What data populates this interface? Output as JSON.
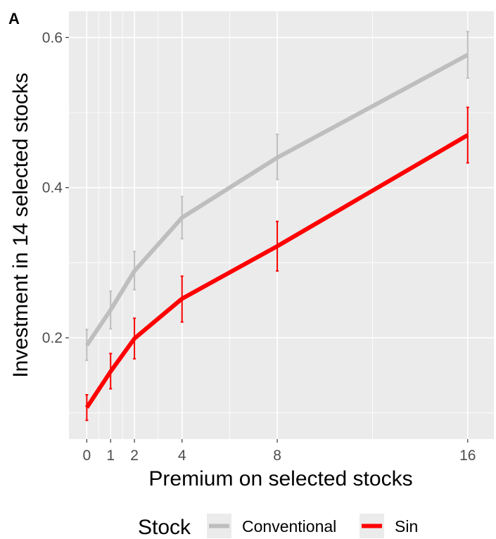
{
  "panel_label": "A",
  "chart_data": {
    "type": "line",
    "xlabel": "Premium on selected stocks",
    "ylabel": "Investment in 14 selected stocks",
    "x": [
      0,
      1,
      2,
      4,
      8,
      16
    ],
    "x_ticks": [
      "0",
      "1",
      "2",
      "4",
      "8",
      "16"
    ],
    "xlim": [
      -0.75,
      17.1
    ],
    "y_ticks": [
      "0.2",
      "0.4",
      "0.6"
    ],
    "ylim": [
      0.065,
      0.635
    ],
    "grid": true,
    "legend_position": "bottom",
    "legend_title": "Stock",
    "series": [
      {
        "name": "Conventional",
        "color": "#bebebe",
        "values": [
          0.19,
          0.237,
          0.289,
          0.36,
          0.44,
          0.577
        ],
        "err_low": [
          0.17,
          0.212,
          0.264,
          0.332,
          0.411,
          0.546
        ],
        "err_high": [
          0.211,
          0.262,
          0.315,
          0.388,
          0.471,
          0.608
        ]
      },
      {
        "name": "Sin",
        "color": "#ff0000",
        "values": [
          0.107,
          0.155,
          0.199,
          0.252,
          0.322,
          0.47
        ],
        "err_low": [
          0.09,
          0.132,
          0.172,
          0.221,
          0.289,
          0.433
        ],
        "err_high": [
          0.124,
          0.179,
          0.226,
          0.282,
          0.355,
          0.507
        ]
      }
    ]
  }
}
